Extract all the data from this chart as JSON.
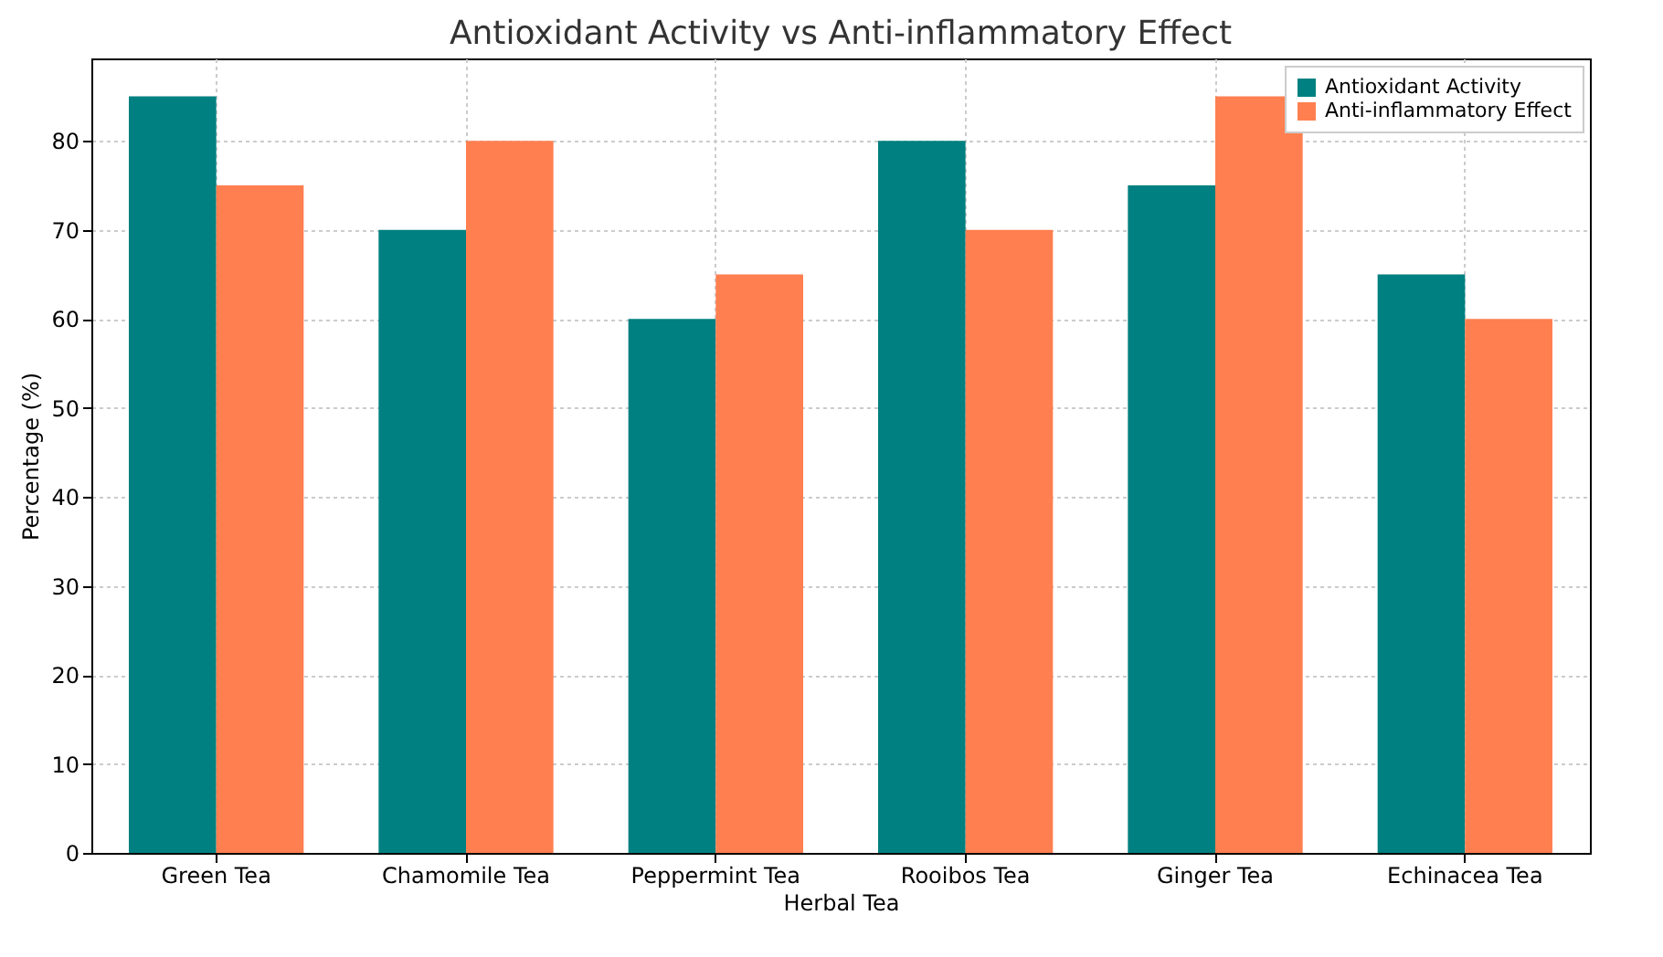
{
  "chart_data": {
    "type": "bar",
    "title": "Antioxidant Activity vs Anti-inflammatory Effect",
    "xlabel": "Herbal Tea",
    "ylabel": "Percentage (%)",
    "categories": [
      "Green Tea",
      "Chamomile Tea",
      "Peppermint Tea",
      "Rooibos Tea",
      "Ginger Tea",
      "Echinacea Tea"
    ],
    "series": [
      {
        "name": "Antioxidant Activity",
        "color": "#008080",
        "values": [
          85,
          70,
          60,
          80,
          75,
          65
        ]
      },
      {
        "name": "Anti-inflammatory Effect",
        "color": "#ff7f50",
        "values": [
          75,
          80,
          65,
          70,
          85,
          60
        ]
      }
    ],
    "ylim": [
      0,
      89.25
    ],
    "yticks": [
      0,
      10,
      20,
      30,
      40,
      50,
      60,
      70,
      80
    ],
    "grid": true,
    "legend": "top right"
  }
}
